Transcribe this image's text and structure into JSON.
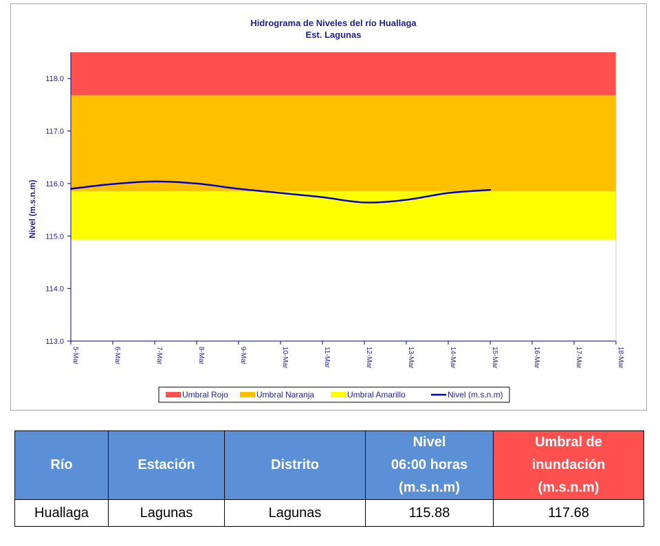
{
  "chart_data": {
    "type": "line",
    "title": "Hidrograma de Niveles del río Huallaga",
    "subtitle": "Est. Lagunas",
    "ylabel": "Nivel (m.s.n.m)",
    "xlabel": "",
    "ylim": [
      113.0,
      118.5
    ],
    "yticks": [
      "113.0",
      "114.0",
      "115.0",
      "116.0",
      "117.0",
      "118.0"
    ],
    "categories": [
      "5-Mar",
      "6-Mar",
      "7-Mar",
      "8-Mar",
      "9-Mar",
      "10-Mar",
      "11-Mar",
      "12-Mar",
      "13-Mar",
      "14-Mar",
      "15-Mar",
      "16-Mar",
      "17-Mar",
      "18-Mar"
    ],
    "grid": false,
    "legend": "bottom",
    "bands": [
      {
        "name": "Umbral Rojo",
        "from": 117.68,
        "to": 118.5,
        "color": "#ff5050"
      },
      {
        "name": "Umbral Naranja",
        "from": 115.85,
        "to": 117.68,
        "color": "#ffc000"
      },
      {
        "name": "Umbral Amarillo",
        "from": 114.93,
        "to": 115.85,
        "color": "#ffff00"
      }
    ],
    "series": [
      {
        "name": "Nivel (m.s.n.m)",
        "color": "#0000cc",
        "values": [
          115.9,
          115.99,
          116.04,
          116.0,
          115.9,
          115.82,
          115.74,
          115.64,
          115.69,
          115.82,
          115.88,
          null,
          null,
          null
        ]
      }
    ]
  },
  "table": {
    "headers": [
      "Río",
      "Estación",
      "Distrito",
      "Nivel\n06:00 horas\n(m.s.n.m)",
      "Umbral de\ninundación\n(m.s.n.m)"
    ],
    "row": [
      "Huallaga",
      "Lagunas",
      "Lagunas",
      "115.88",
      "117.68"
    ]
  }
}
